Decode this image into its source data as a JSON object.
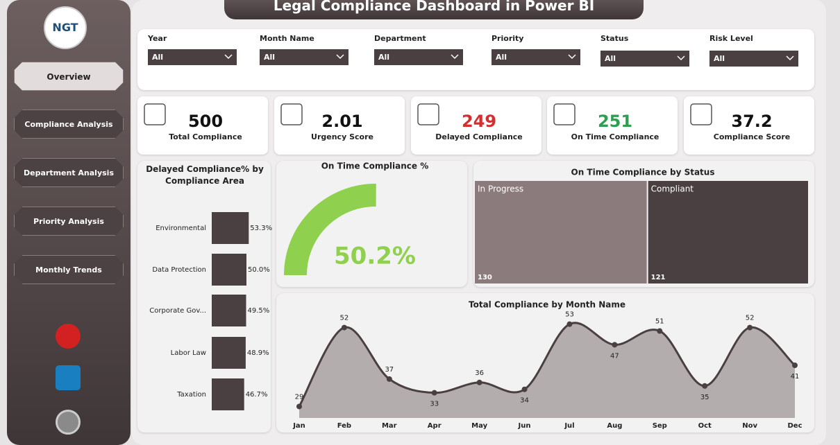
{
  "header": {
    "title": "Legal Compliance Dashboard in Power BI",
    "logo": "NGT"
  },
  "nav": [
    "Overview",
    "Compliance Analysis",
    "Department Analysis",
    "Priority Analysis",
    "Monthly Trends"
  ],
  "filters": [
    {
      "label": "Year",
      "value": "All"
    },
    {
      "label": "Month Name",
      "value": "All"
    },
    {
      "label": "Department",
      "value": "All"
    },
    {
      "label": "Priority",
      "value": "All"
    },
    {
      "label": "Status",
      "value": "All"
    },
    {
      "label": "Risk Level",
      "value": "All"
    }
  ],
  "kpis": [
    {
      "value": 500,
      "label": "Total Compliance",
      "color": "#111111"
    },
    {
      "value": 2.01,
      "label": "Urgency Score",
      "color": "#111111"
    },
    {
      "value": 249,
      "label": "Delayed Compliance",
      "color": "#d32f2f"
    },
    {
      "value": 251,
      "label": "On Time Compliance",
      "color": "#2e9e4f"
    },
    {
      "value": 37.2,
      "label": "Compliance Score",
      "color": "#111111"
    }
  ],
  "chart_data": [
    {
      "type": "bar",
      "title": "Delayed Compliance% by Compliance Area",
      "categories": [
        "Environmental",
        "Data Protection",
        "Corporate Gov...",
        "Labor Law",
        "Taxation"
      ],
      "values": [
        53.3,
        50.0,
        49.5,
        48.9,
        46.7
      ],
      "value_labels": [
        "53.3%",
        "50.0%",
        "49.5%",
        "48.9%",
        "46.7%"
      ],
      "color": "#4a3f41"
    },
    {
      "type": "gauge",
      "title": "On Time Compliance %",
      "value": 50.2,
      "value_label": "50.2%",
      "color": "#8fd14f"
    },
    {
      "type": "treemap",
      "title": "On Time Compliance by Status",
      "categories": [
        "In Progress",
        "Compliant"
      ],
      "values": [
        130,
        121
      ],
      "colors": [
        "#8c7b7c",
        "#4a3f41"
      ]
    },
    {
      "type": "area",
      "title": "Total Compliance by Month Name",
      "categories": [
        "Jan",
        "Feb",
        "Mar",
        "Apr",
        "May",
        "Jun",
        "Jul",
        "Aug",
        "Sep",
        "Oct",
        "Nov",
        "Dec"
      ],
      "values": [
        29,
        52,
        37,
        33,
        36,
        34,
        53,
        47,
        51,
        35,
        52,
        41
      ],
      "color": "#4a3f41",
      "fill": "#b3adae"
    }
  ]
}
